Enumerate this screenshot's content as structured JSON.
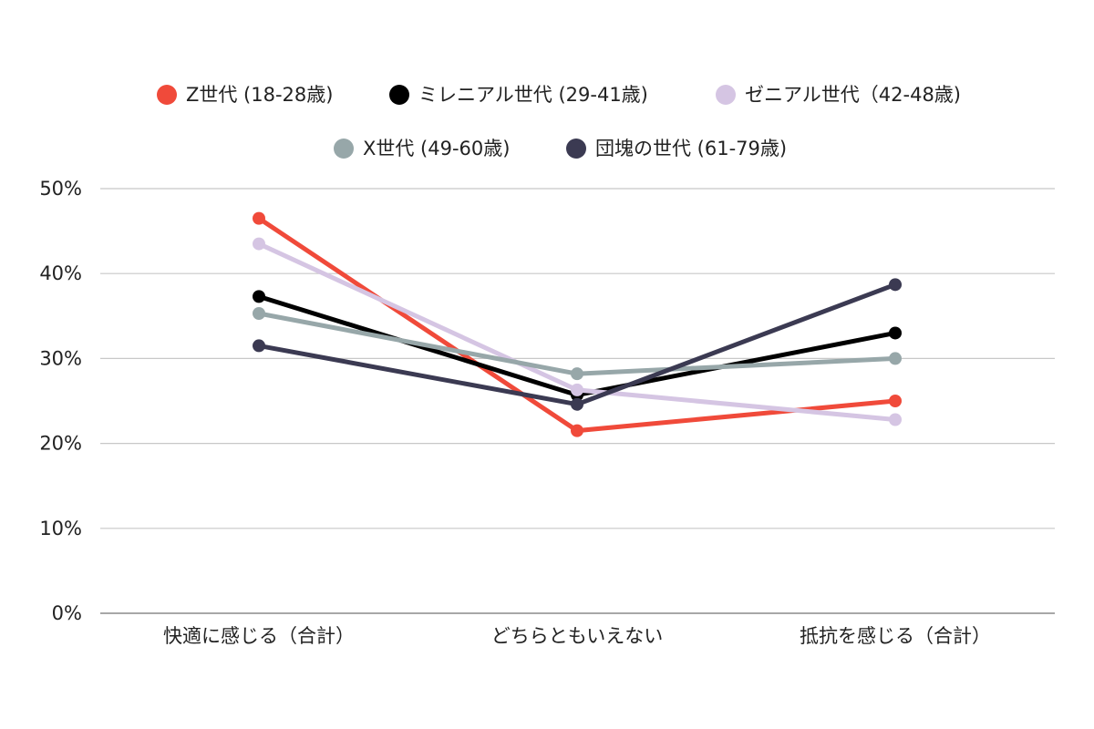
{
  "chart_data": {
    "type": "line",
    "categories": [
      "快適に感じる（合計）",
      "どちらともいえない",
      "抵抗を感じる（合計）"
    ],
    "series": [
      {
        "name": "Z世代 (18-28歳)",
        "color": "#f04a3a",
        "values": [
          46.5,
          21.5,
          25.0
        ]
      },
      {
        "name": "ミレニアル世代 (29-41歳)",
        "color": "#000000",
        "values": [
          37.3,
          25.7,
          33.0
        ]
      },
      {
        "name": "ゼニアル世代（42-48歳)",
        "color": "#d5c5e3",
        "values": [
          43.5,
          26.3,
          22.8
        ]
      },
      {
        "name": "X世代 (49-60歳)",
        "color": "#97a7a9",
        "values": [
          35.3,
          28.2,
          30.0
        ]
      },
      {
        "name": "団塊の世代 (61-79歳)",
        "color": "#3b3a52",
        "values": [
          31.5,
          24.6,
          38.7
        ]
      }
    ],
    "y_ticks": [
      "0%",
      "10%",
      "20%",
      "30%",
      "40%",
      "50%"
    ],
    "ylim": [
      0,
      50
    ],
    "grid": true,
    "legend_position": "top"
  }
}
